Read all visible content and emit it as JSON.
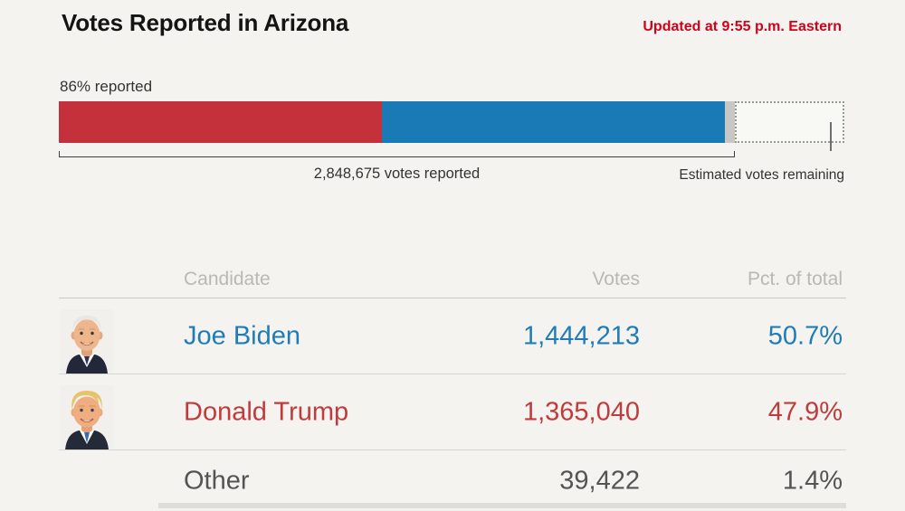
{
  "header": {
    "title": "Votes Reported in Arizona",
    "updated": "Updated at 9:55 p.m. Eastern",
    "updated_color": "#d0021b"
  },
  "progress": {
    "reported_label": "86% reported",
    "votes_reported_label": "2,848,675 votes reported",
    "remaining_label": "Estimated votes remaining"
  },
  "chart_data": {
    "type": "bar",
    "title": "Votes Reported in Arizona",
    "percent_reported": 86,
    "total_votes_reported": 2848675,
    "orientation": "horizontal-stacked",
    "bar_segments": [
      {
        "name": "Donald Trump",
        "share_pct_of_reported": 47.9,
        "width_pct": 41.0,
        "color": "#c5313b"
      },
      {
        "name": "Joe Biden",
        "share_pct_of_reported": 50.7,
        "width_pct": 43.6,
        "color": "#1a7ab5"
      },
      {
        "name": "Other",
        "share_pct_of_reported": 1.4,
        "width_pct": 1.3,
        "color": "#c8c7c3"
      }
    ],
    "remaining_width_pct": 14.1,
    "annotations": [
      "86% reported",
      "2,848,675 votes reported",
      "Estimated votes remaining"
    ]
  },
  "table": {
    "headers": {
      "candidate": "Candidate",
      "votes": "Votes",
      "pct": "Pct. of total"
    },
    "rows": [
      {
        "name": "Joe Biden",
        "votes": "1,444,213",
        "pct": "50.7%",
        "color": "#1f7cb6",
        "avatar": "joe-biden-headshot"
      },
      {
        "name": "Donald Trump",
        "votes": "1,365,040",
        "pct": "47.9%",
        "color": "#c03c3c",
        "avatar": "donald-trump-headshot"
      },
      {
        "name": "Other",
        "votes": "39,422",
        "pct": "1.4%",
        "color": "#545454"
      }
    ]
  }
}
